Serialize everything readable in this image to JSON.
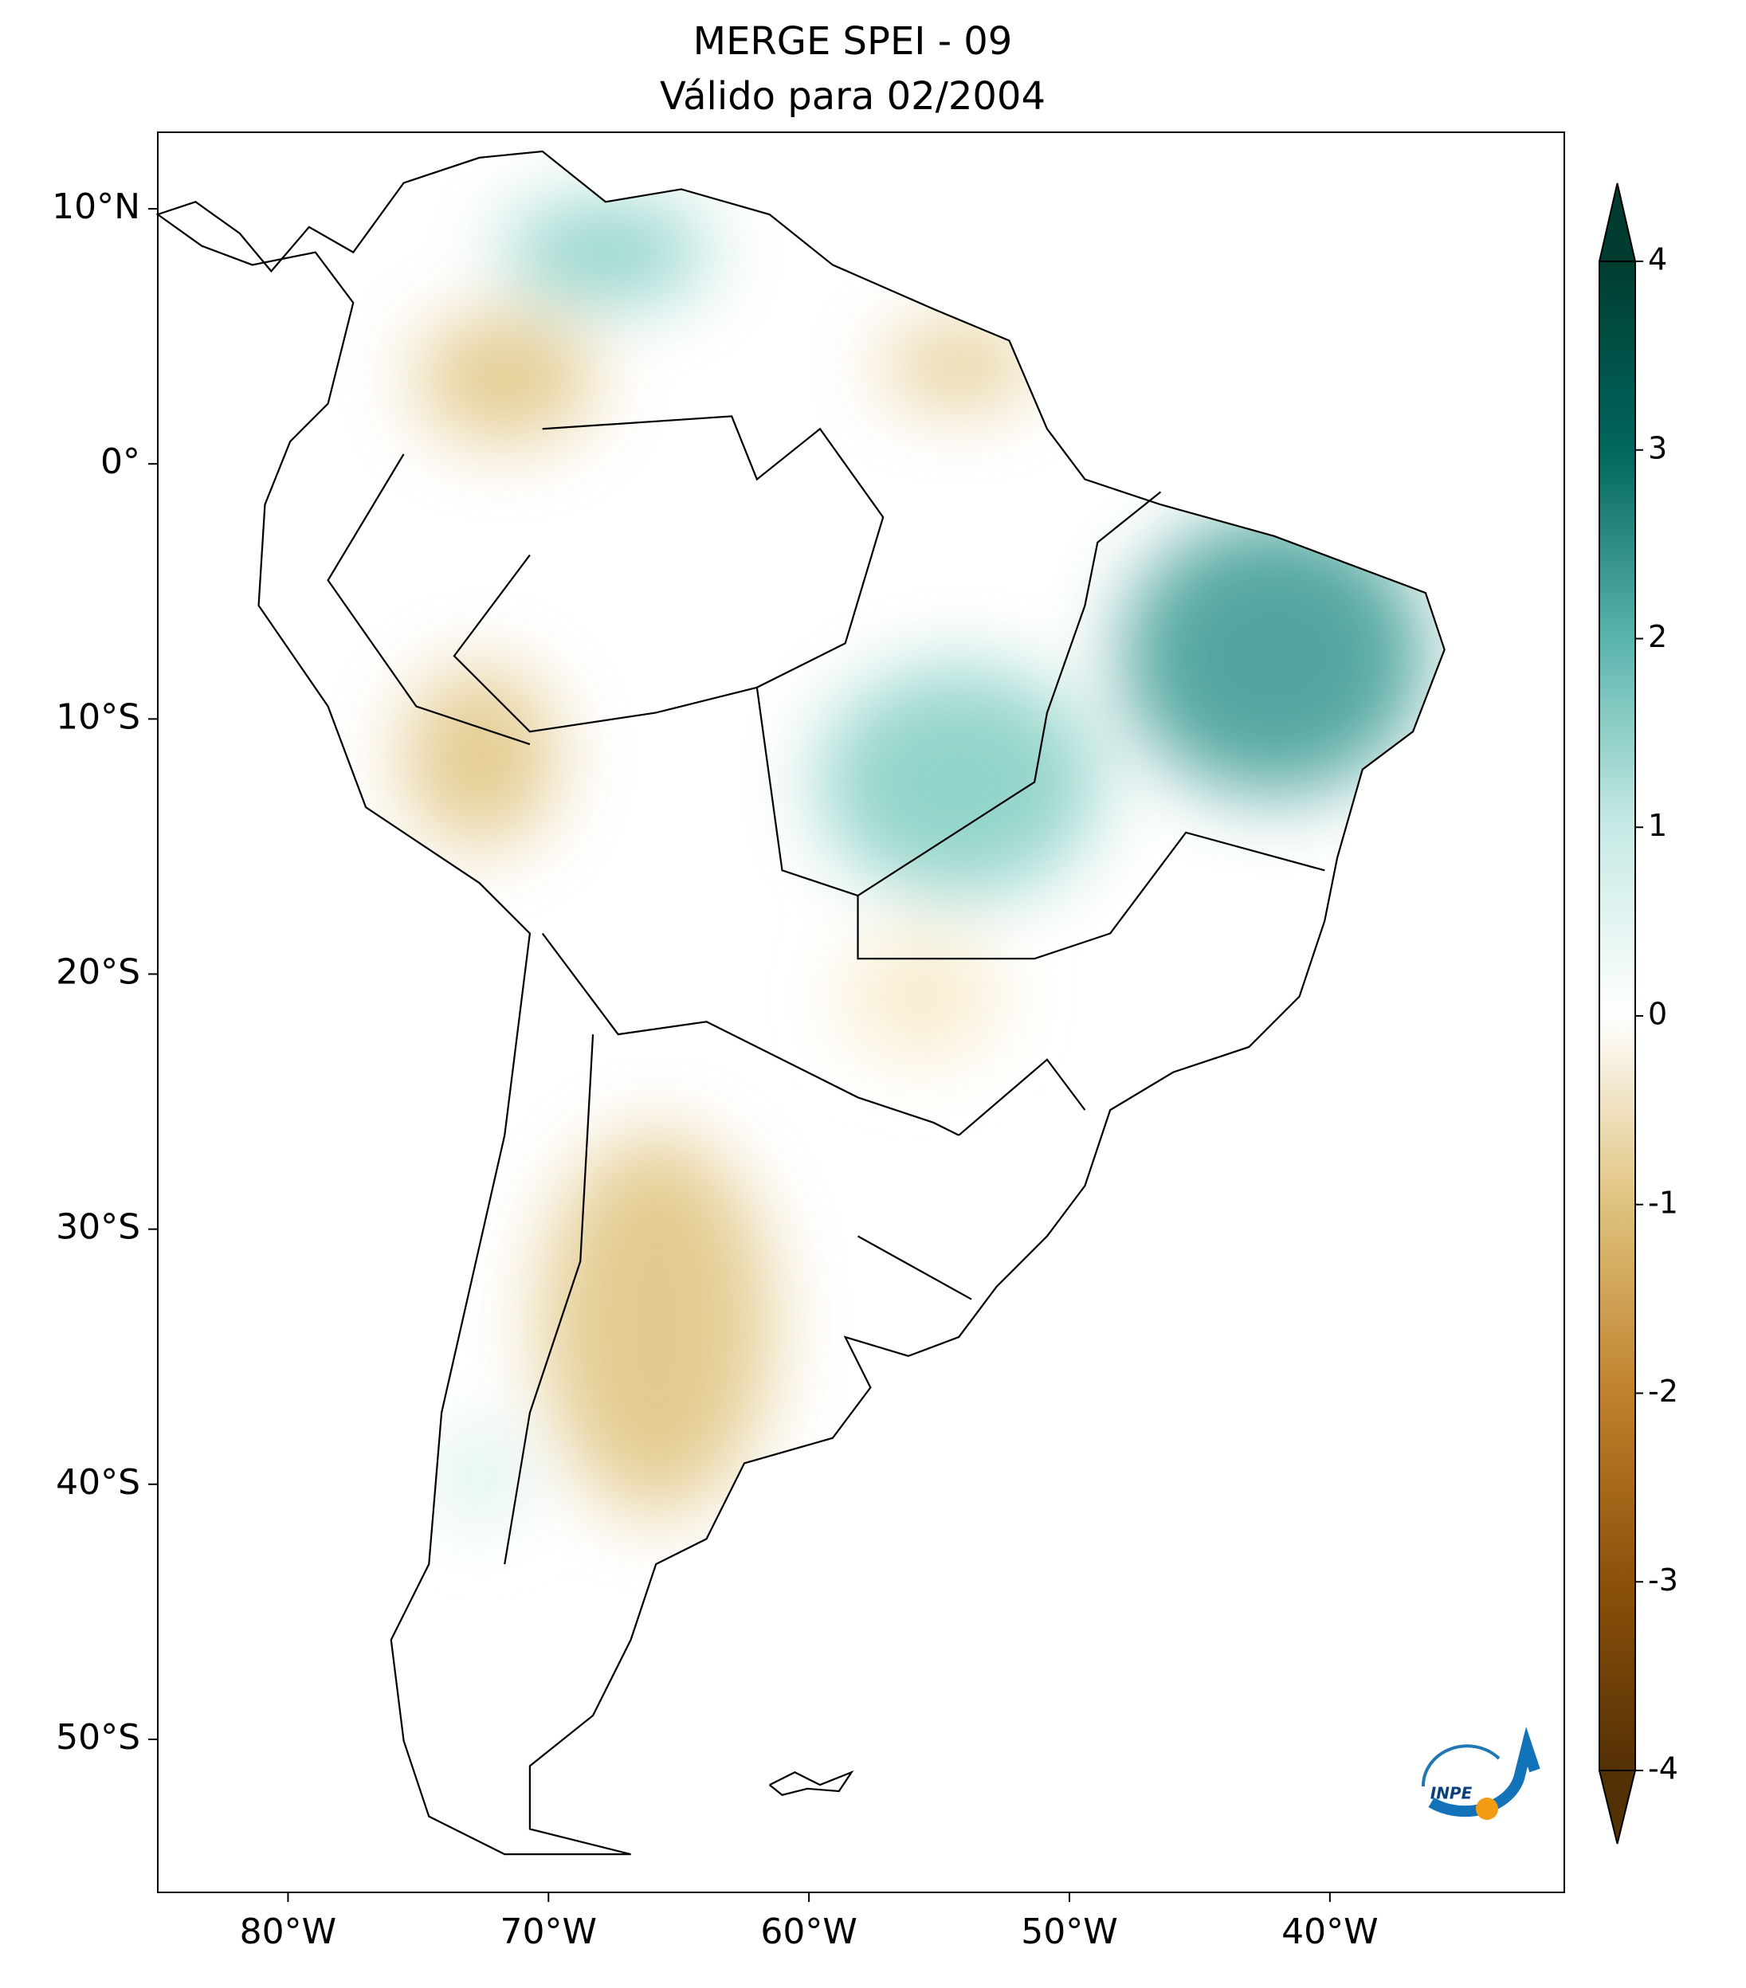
{
  "chart_data": {
    "type": "map",
    "title": "MERGE   SPEI - 09",
    "subtitle": "Válido para 02/2004",
    "xlim": [
      -85,
      -31
    ],
    "ylim": [
      -56,
      13
    ],
    "xticks": [
      {
        "value": -80,
        "label": "80°W"
      },
      {
        "value": -70,
        "label": "70°W"
      },
      {
        "value": -60,
        "label": "60°W"
      },
      {
        "value": -50,
        "label": "50°W"
      },
      {
        "value": -40,
        "label": "40°W"
      }
    ],
    "yticks": [
      {
        "value": 10,
        "label": "10°N"
      },
      {
        "value": 0,
        "label": "0°"
      },
      {
        "value": -10,
        "label": "10°S"
      },
      {
        "value": -20,
        "label": "20°S"
      },
      {
        "value": -30,
        "label": "30°S"
      },
      {
        "value": -40,
        "label": "40°S"
      },
      {
        "value": -50,
        "label": "50°S"
      }
    ],
    "colorbar": {
      "lim": [
        -4,
        4
      ],
      "ticks": [
        -4,
        -3,
        -2,
        -1,
        0,
        1,
        2,
        3,
        4
      ],
      "colors": [
        "#543005",
        "#8c510a",
        "#bf812d",
        "#dfc27d",
        "#ffffff",
        "#c7eae5",
        "#5ab4ac",
        "#01665e",
        "#003c30"
      ]
    },
    "logo_text": "INPE"
  }
}
